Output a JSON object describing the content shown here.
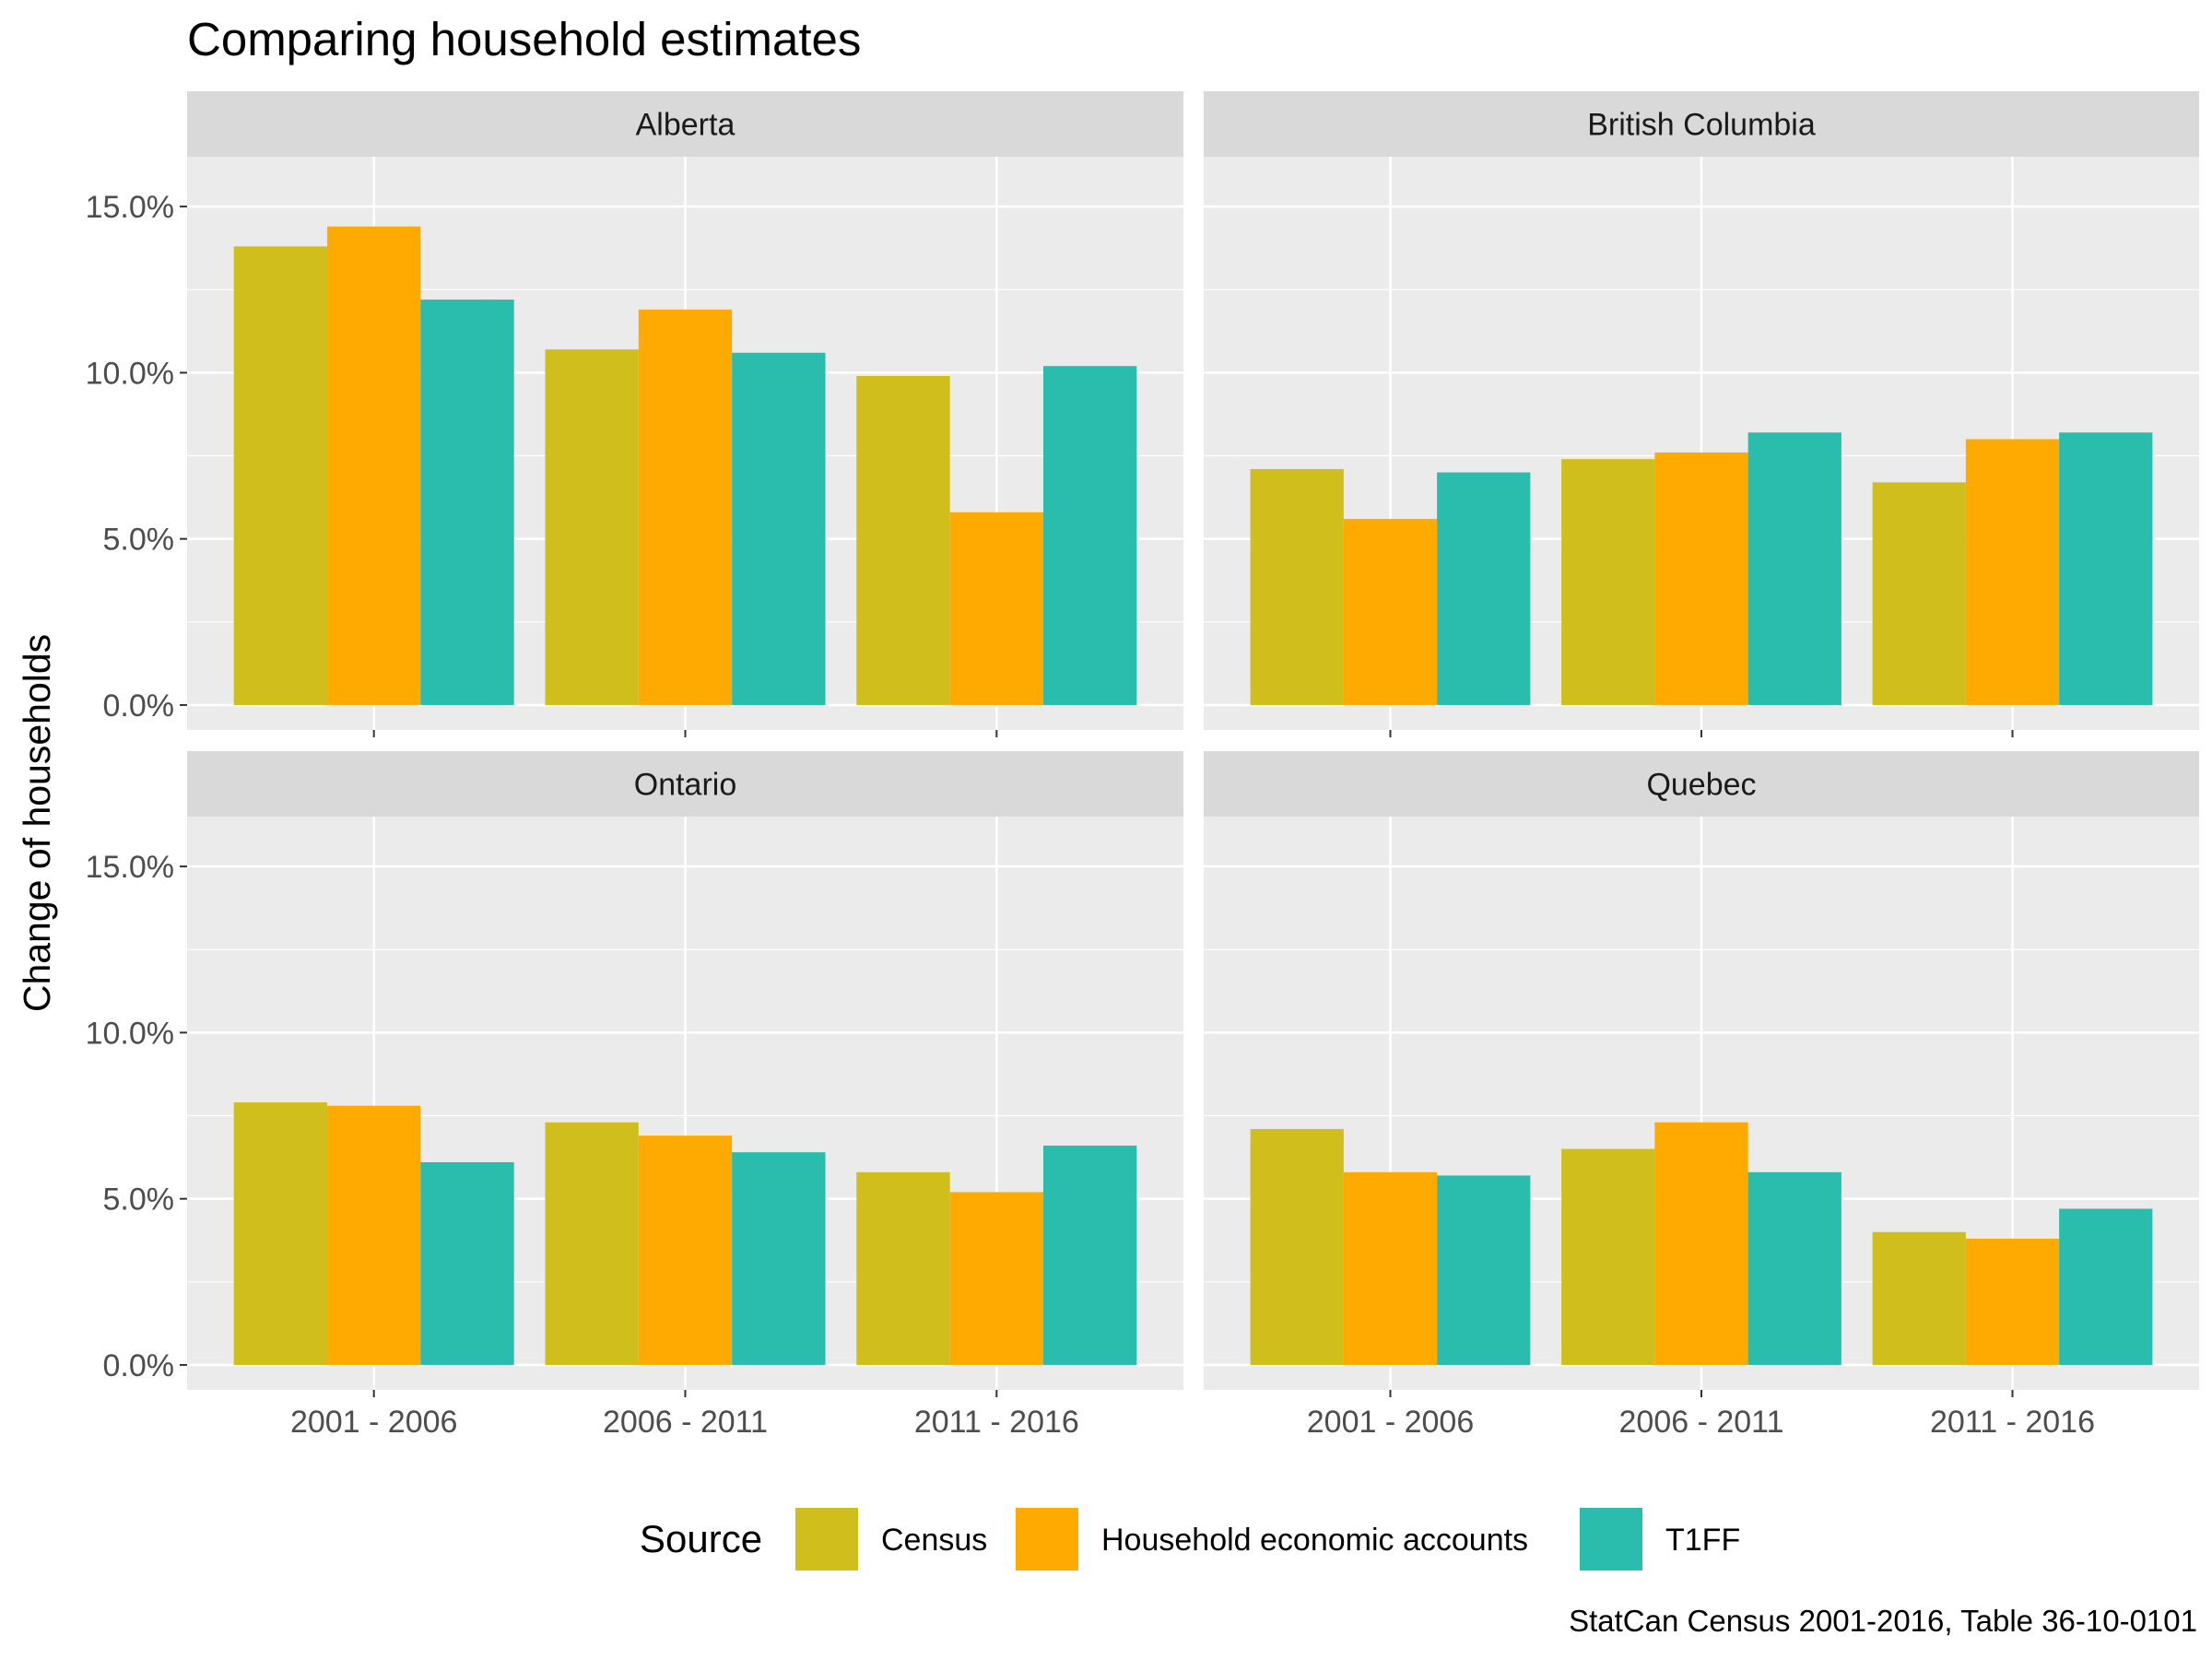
{
  "chart_data": {
    "type": "bar",
    "title": "Comparing household estimates",
    "ylabel": "Change of households",
    "xlabel": "",
    "caption": "StatCan Census 2001-2016, Table 36-10-0101",
    "categories": [
      "2001 - 2006",
      "2006 - 2011",
      "2011 - 2016"
    ],
    "y_ticks": [
      0,
      5,
      10,
      15
    ],
    "y_tick_labels": [
      "0.0%",
      "5.0%",
      "10.0%",
      "15.0%"
    ],
    "ylim": [
      -0.75,
      16.5
    ],
    "grid": true,
    "legend": {
      "title": "Source",
      "placement": "bottom",
      "entries": [
        "Census",
        "Household economic accounts",
        "T1FF"
      ]
    },
    "colors": {
      "Census": "#D0BE1C",
      "Household economic accounts": "#FFAA00",
      "T1FF": "#2ABDAD",
      "panel_bg": "#EBEBEB",
      "strip_bg": "#D9D9D9",
      "grid": "#FFFFFF"
    },
    "panels": [
      {
        "name": "Alberta",
        "series": [
          {
            "name": "Census",
            "values": [
              13.8,
              10.7,
              9.9
            ]
          },
          {
            "name": "Household economic accounts",
            "values": [
              14.4,
              11.9,
              5.8
            ]
          },
          {
            "name": "T1FF",
            "values": [
              12.2,
              10.6,
              10.2
            ]
          }
        ]
      },
      {
        "name": "British Columbia",
        "series": [
          {
            "name": "Census",
            "values": [
              7.1,
              7.4,
              6.7
            ]
          },
          {
            "name": "Household economic accounts",
            "values": [
              5.6,
              7.6,
              8.0
            ]
          },
          {
            "name": "T1FF",
            "values": [
              7.0,
              8.2,
              8.2
            ]
          }
        ]
      },
      {
        "name": "Ontario",
        "series": [
          {
            "name": "Census",
            "values": [
              7.9,
              7.3,
              5.8
            ]
          },
          {
            "name": "Household economic accounts",
            "values": [
              7.8,
              6.9,
              5.2
            ]
          },
          {
            "name": "T1FF",
            "values": [
              6.1,
              6.4,
              6.6
            ]
          }
        ]
      },
      {
        "name": "Quebec",
        "series": [
          {
            "name": "Census",
            "values": [
              7.1,
              6.5,
              4.0
            ]
          },
          {
            "name": "Household economic accounts",
            "values": [
              5.8,
              7.3,
              3.8
            ]
          },
          {
            "name": "T1FF",
            "values": [
              5.7,
              5.8,
              4.7
            ]
          }
        ]
      }
    ]
  }
}
